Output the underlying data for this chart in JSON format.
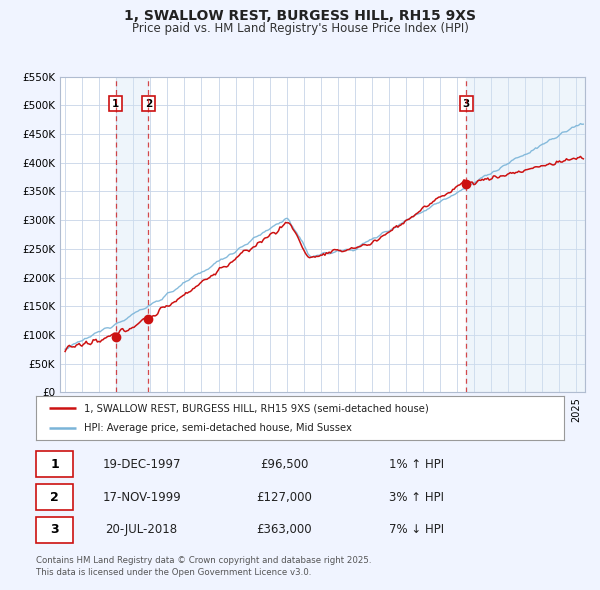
{
  "title": "1, SWALLOW REST, BURGESS HILL, RH15 9XS",
  "subtitle": "Price paid vs. HM Land Registry's House Price Index (HPI)",
  "background_color": "#f0f4ff",
  "plot_bg_color": "#ffffff",
  "grid_color": "#c8d4e8",
  "hpi_color": "#7ab4d8",
  "price_color": "#cc1111",
  "shade_color": "#d0e4f4",
  "ylim": [
    0,
    550000
  ],
  "yticks": [
    0,
    50000,
    100000,
    150000,
    200000,
    250000,
    300000,
    350000,
    400000,
    450000,
    500000,
    550000
  ],
  "ytick_labels": [
    "£0",
    "£50K",
    "£100K",
    "£150K",
    "£200K",
    "£250K",
    "£300K",
    "£350K",
    "£400K",
    "£450K",
    "£500K",
    "£550K"
  ],
  "xlim_start": 1994.7,
  "xlim_end": 2025.5,
  "sale1_date": 1997.96,
  "sale1_price": 96500,
  "sale1_label": "1",
  "sale2_date": 1999.88,
  "sale2_price": 127000,
  "sale2_label": "2",
  "sale3_date": 2018.54,
  "sale3_price": 363000,
  "sale3_label": "3",
  "legend_entries": [
    "1, SWALLOW REST, BURGESS HILL, RH15 9XS (semi-detached house)",
    "HPI: Average price, semi-detached house, Mid Sussex"
  ],
  "table_rows": [
    {
      "num": "1",
      "date": "19-DEC-1997",
      "price": "£96,500",
      "hpi": "1% ↑ HPI"
    },
    {
      "num": "2",
      "date": "17-NOV-1999",
      "price": "£127,000",
      "hpi": "3% ↑ HPI"
    },
    {
      "num": "3",
      "date": "20-JUL-2018",
      "price": "£363,000",
      "hpi": "7% ↓ HPI"
    }
  ],
  "footer": "Contains HM Land Registry data © Crown copyright and database right 2025.\nThis data is licensed under the Open Government Licence v3.0."
}
